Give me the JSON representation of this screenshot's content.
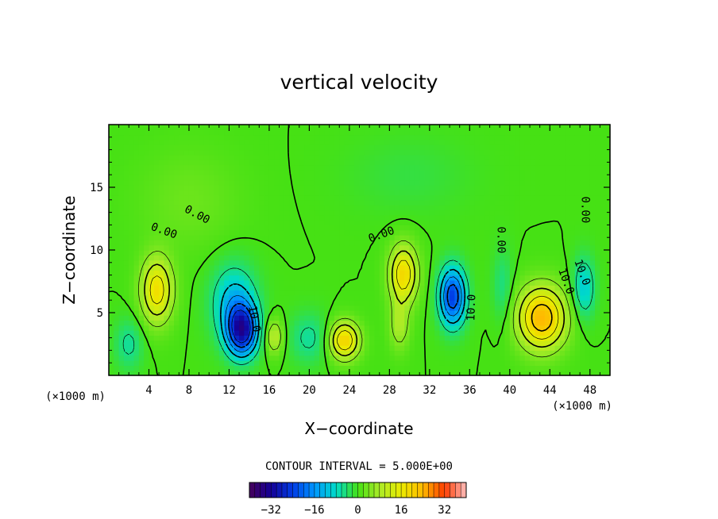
{
  "chart_data": {
    "type": "heatmap",
    "title": "vertical velocity",
    "xlabel": "X−coordinate",
    "ylabel": "Z−coordinate",
    "x_unit_label": "(×1000 m)",
    "xlim": [
      0,
      50
    ],
    "ylim": [
      0,
      20
    ],
    "x_ticks": [
      4,
      8,
      12,
      16,
      20,
      24,
      28,
      32,
      36,
      40,
      44,
      48
    ],
    "y_ticks": [
      5,
      10,
      15
    ],
    "contour_interval_text": "CONTOUR INTERVAL = 5.000E+00",
    "colorbar": {
      "range": [
        -40,
        40
      ],
      "ticks": [
        -32,
        -16,
        0,
        16,
        32
      ],
      "tick_labels": [
        "−32",
        "−16",
        "0",
        "16",
        "32"
      ]
    },
    "contour_labels": [
      {
        "text": "0.00",
        "x": 5.5,
        "z": 11.5,
        "angle": 20
      },
      {
        "text": "0.00",
        "x": 8.8,
        "z": 12.8,
        "angle": 28
      },
      {
        "text": "0.00",
        "x": 27.2,
        "z": 11.2,
        "angle": -20
      },
      {
        "text": "0.00",
        "x": 39.1,
        "z": 10.8,
        "angle": 90
      },
      {
        "text": "10.0",
        "x": 14.5,
        "z": 4.5,
        "angle": 80
      },
      {
        "text": "10.0",
        "x": 36.2,
        "z": 5.4,
        "angle": -88
      },
      {
        "text": "10.0",
        "x": 45.6,
        "z": 7.5,
        "angle": 70
      },
      {
        "text": "10.0",
        "x": 47.2,
        "z": 8.2,
        "angle": 70
      },
      {
        "text": "0.00",
        "x": 47.5,
        "z": 13.2,
        "angle": 90
      }
    ],
    "field": [
      {
        "x": 4.8,
        "z": 6.8,
        "value": 18,
        "sx": 1.6,
        "sz": 2.6
      },
      {
        "x": 13.3,
        "z": 3.6,
        "value": -28,
        "sx": 1.5,
        "sz": 2.0
      },
      {
        "x": 12.5,
        "z": 5.8,
        "value": -12,
        "sx": 2.2,
        "sz": 3.0
      },
      {
        "x": 16.5,
        "z": 3.1,
        "value": 10,
        "sx": 0.9,
        "sz": 1.4
      },
      {
        "x": 23.5,
        "z": 2.8,
        "value": 20,
        "sx": 1.5,
        "sz": 1.5
      },
      {
        "x": 29.4,
        "z": 8.1,
        "value": 19,
        "sx": 1.4,
        "sz": 2.3
      },
      {
        "x": 29.0,
        "z": 4.0,
        "value": 8,
        "sx": 1.0,
        "sz": 2.0
      },
      {
        "x": 34.3,
        "z": 6.3,
        "value": -24,
        "sx": 1.3,
        "sz": 2.3
      },
      {
        "x": 43.2,
        "z": 4.6,
        "value": 24,
        "sx": 2.4,
        "sz": 2.5
      },
      {
        "x": 47.4,
        "z": 7.0,
        "value": -10,
        "sx": 1.1,
        "sz": 2.4
      },
      {
        "x": 20.0,
        "z": 3.0,
        "value": -6,
        "sx": 2.0,
        "sz": 2.0
      },
      {
        "x": 2.0,
        "z": 2.5,
        "value": -6,
        "sx": 1.4,
        "sz": 2.0
      },
      {
        "x": 39.3,
        "z": 7.0,
        "value": -5,
        "sx": 1.0,
        "sz": 3.0
      },
      {
        "x": 8.0,
        "z": 14.0,
        "value": 3,
        "sx": 5.0,
        "sz": 4.0
      },
      {
        "x": 30.0,
        "z": 16.0,
        "value": -2,
        "sx": 6.0,
        "sz": 3.0
      }
    ]
  }
}
